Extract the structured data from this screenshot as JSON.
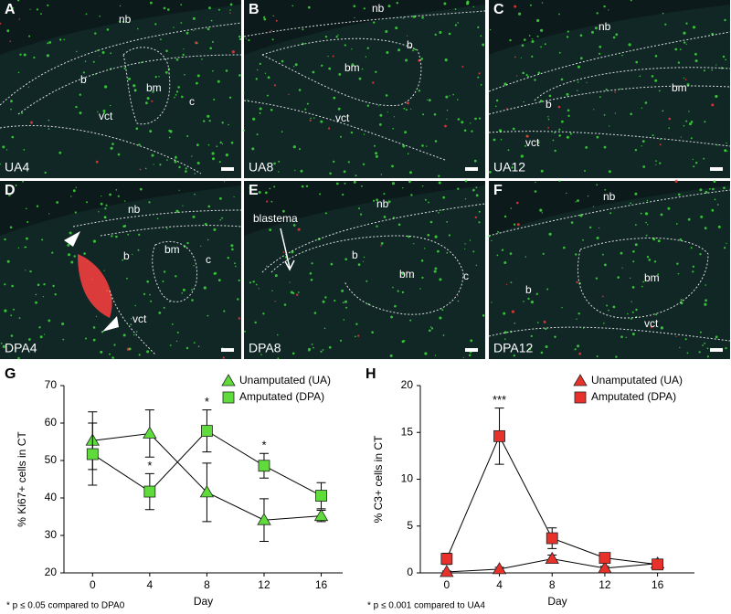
{
  "panels": [
    {
      "letter": "A",
      "caption": "UA4",
      "labels": [
        "nb",
        "b",
        "bm",
        "c",
        "vct"
      ]
    },
    {
      "letter": "B",
      "caption": "UA8",
      "labels": [
        "nb",
        "b",
        "bm",
        "vct"
      ]
    },
    {
      "letter": "C",
      "caption": "UA12",
      "labels": [
        "nb",
        "bm",
        "b",
        "vct"
      ]
    },
    {
      "letter": "D",
      "caption": "DPA4",
      "labels": [
        "nb",
        "b",
        "bm",
        "c",
        "vct"
      ]
    },
    {
      "letter": "E",
      "caption": "DPA8",
      "labels": [
        "nb",
        "blastema",
        "b",
        "bm",
        "c"
      ]
    },
    {
      "letter": "F",
      "caption": "DPA12",
      "labels": [
        "nb",
        "bm",
        "b",
        "vct"
      ]
    }
  ],
  "chart_data": [
    {
      "type": "line",
      "panel_label": "G",
      "x_label": "Day",
      "y_label": "% Ki67+ cells in CT",
      "footnote": "* p ≤ 0.05 compared to DPA0",
      "x": [
        0,
        4,
        8,
        12,
        16
      ],
      "xlim": [
        -2,
        17.5
      ],
      "xticks": [
        0,
        4,
        8,
        12,
        16
      ],
      "ylim": [
        20,
        70
      ],
      "yticks": [
        20,
        30,
        40,
        50,
        60,
        70
      ],
      "series": [
        {
          "name": "Unamputated (UA)",
          "color": "#5fdc3c",
          "marker": "triangle",
          "values": [
            55.3,
            57.2,
            41.5,
            34.1,
            35.2
          ],
          "errors": [
            7.7,
            6.3,
            7.8,
            5.7,
            1.5
          ]
        },
        {
          "name": "Amputated (DPA)",
          "color": "#5fdc3c",
          "marker": "square",
          "values": [
            51.7,
            41.7,
            57.9,
            48.6,
            40.6
          ],
          "errors": [
            8.3,
            4.8,
            5.6,
            3.3,
            3.5
          ]
        }
      ],
      "annotations": [
        {
          "text": "*",
          "x": 4
        },
        {
          "text": "*",
          "x": 8
        },
        {
          "text": "*",
          "x": 12
        }
      ]
    },
    {
      "type": "line",
      "panel_label": "H",
      "x_label": "Day",
      "y_label": "% C3+ cells in CT",
      "footnote": "* p ≤ 0.001 compared to UA4",
      "x": [
        0,
        4,
        8,
        12,
        16
      ],
      "xlim": [
        -2,
        18.8
      ],
      "xticks": [
        0,
        4,
        8,
        12,
        16
      ],
      "ylim": [
        0,
        20
      ],
      "yticks": [
        0,
        5,
        10,
        15,
        20
      ],
      "series": [
        {
          "name": "Unamputated (UA)",
          "color": "#e8312a",
          "marker": "triangle",
          "values": [
            0.1,
            0.4,
            1.5,
            0.5,
            1.0
          ],
          "errors": [
            0.1,
            0.2,
            0.4,
            0.2,
            0.3
          ]
        },
        {
          "name": "Amputated (DPA)",
          "color": "#e8312a",
          "marker": "square",
          "values": [
            1.5,
            14.6,
            3.7,
            1.6,
            0.9
          ],
          "errors": [
            0.6,
            3.0,
            1.1,
            0.2,
            0.4
          ]
        }
      ],
      "annotations": [
        {
          "text": "***",
          "x": 4
        }
      ]
    }
  ]
}
